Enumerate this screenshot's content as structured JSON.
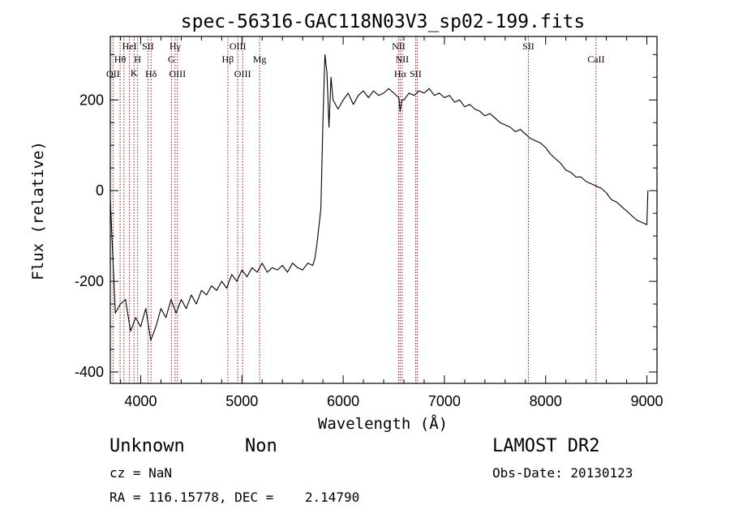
{
  "chart_data": {
    "type": "line",
    "title": "spec-56316-GAC118N03V3_sp02-199.fits",
    "xlabel": "Wavelength (Å)",
    "ylabel": "Flux (relative)",
    "xlim": [
      3700,
      9100
    ],
    "ylim": [
      -425,
      340
    ],
    "xticks": [
      "4000",
      "5000",
      "6000",
      "7000",
      "8000",
      "9000"
    ],
    "yticks": [
      "-400",
      "-200",
      "0",
      "200"
    ],
    "series": [
      {
        "x": [
          3700,
          3750,
          3800,
          3850,
          3900,
          3950,
          4000,
          4050,
          4100,
          4150,
          4200,
          4250,
          4300,
          4350,
          4400,
          4450,
          4500,
          4550,
          4600,
          4650,
          4700,
          4750,
          4800,
          4850,
          4900,
          4950,
          5000,
          5050,
          5100,
          5150,
          5200,
          5250,
          5300,
          5350,
          5400,
          5450,
          5500,
          5550,
          5600,
          5650,
          5700,
          5720,
          5740,
          5760,
          5780,
          5800,
          5820,
          5840,
          5860,
          5880,
          5900,
          5950,
          6000,
          6050,
          6100,
          6150,
          6200,
          6250,
          6300,
          6350,
          6400,
          6450,
          6500,
          6550,
          6563,
          6580,
          6600,
          6650,
          6700,
          6750,
          6800,
          6850,
          6900,
          6950,
          7000,
          7050,
          7100,
          7150,
          7200,
          7250,
          7300,
          7350,
          7400,
          7450,
          7500,
          7550,
          7600,
          7650,
          7700,
          7750,
          7800,
          7850,
          7900,
          7950,
          8000,
          8050,
          8100,
          8150,
          8200,
          8250,
          8300,
          8350,
          8400,
          8450,
          8500,
          8550,
          8600,
          8650,
          8700,
          8750,
          8800,
          8850,
          8900,
          8950,
          9000,
          9010
        ],
        "y": [
          -20,
          -270,
          -250,
          -240,
          -310,
          -280,
          -300,
          -260,
          -330,
          -300,
          -260,
          -280,
          -240,
          -270,
          -240,
          -260,
          -230,
          -250,
          -220,
          -230,
          -210,
          -220,
          -200,
          -215,
          -185,
          -200,
          -175,
          -190,
          -170,
          -180,
          -160,
          -180,
          -170,
          -175,
          -165,
          -180,
          -160,
          -170,
          -175,
          -160,
          -165,
          -150,
          -120,
          -80,
          -40,
          150,
          300,
          260,
          140,
          250,
          200,
          180,
          200,
          215,
          190,
          210,
          220,
          205,
          220,
          210,
          215,
          225,
          215,
          205,
          175,
          200,
          200,
          215,
          210,
          220,
          215,
          225,
          210,
          215,
          205,
          210,
          195,
          200,
          185,
          190,
          180,
          175,
          165,
          170,
          160,
          150,
          145,
          140,
          130,
          135,
          125,
          115,
          110,
          105,
          95,
          80,
          70,
          60,
          45,
          40,
          30,
          30,
          20,
          15,
          10,
          5,
          -5,
          -20,
          -25,
          -35,
          -45,
          -55,
          -65,
          -70,
          -75,
          0
        ]
      }
    ],
    "line_labels": [
      {
        "x": 3727,
        "text": "OII",
        "row": 4
      },
      {
        "x": 3797,
        "text": "Hθ",
        "row": 2
      },
      {
        "x": 3889,
        "text": "HeI",
        "row": 1
      },
      {
        "x": 3934,
        "text": "K",
        "row": 3
      },
      {
        "x": 3970,
        "text": "H",
        "row": 2
      },
      {
        "x": 4072,
        "text": "SII",
        "row": 1
      },
      {
        "x": 4102,
        "text": "Hδ",
        "row": 4
      },
      {
        "x": 4304,
        "text": "G",
        "row": 2
      },
      {
        "x": 4340,
        "text": "Hγ",
        "row": 1
      },
      {
        "x": 4363,
        "text": "OIII",
        "row": 4
      },
      {
        "x": 4861,
        "text": "Hβ",
        "row": 2
      },
      {
        "x": 4959,
        "text": "OIII",
        "row": 1
      },
      {
        "x": 5007,
        "text": "OIII",
        "row": 4
      },
      {
        "x": 5175,
        "text": "Mg",
        "row": 2
      },
      {
        "x": 6548,
        "text": "NII",
        "row": 1
      },
      {
        "x": 6583,
        "text": "NII",
        "row": 2
      },
      {
        "x": 6563,
        "text": "Hα",
        "row": 4
      },
      {
        "x": 6716,
        "text": "SII",
        "row": 4
      },
      {
        "x": 7830,
        "text": "SII",
        "row": 1
      },
      {
        "x": 8498,
        "text": "CaII",
        "row": 2
      }
    ],
    "line_positions": [
      3727,
      3797,
      3835,
      3889,
      3934,
      3970,
      4072,
      4102,
      4304,
      4340,
      4363,
      4861,
      4959,
      5007,
      5175,
      6548,
      6563,
      6583,
      6716,
      6731,
      7830,
      8498
    ],
    "colors": {
      "spectrum": "#000000",
      "lines": "#a01010",
      "axes": "#000000"
    }
  },
  "info": {
    "object": "Unknown",
    "class": "Non",
    "survey": "LAMOST DR2",
    "redshift": "cz = NaN",
    "obs_date": "Obs-Date: 20130123",
    "coords": "RA = 116.15778, DEC =    2.14790"
  }
}
